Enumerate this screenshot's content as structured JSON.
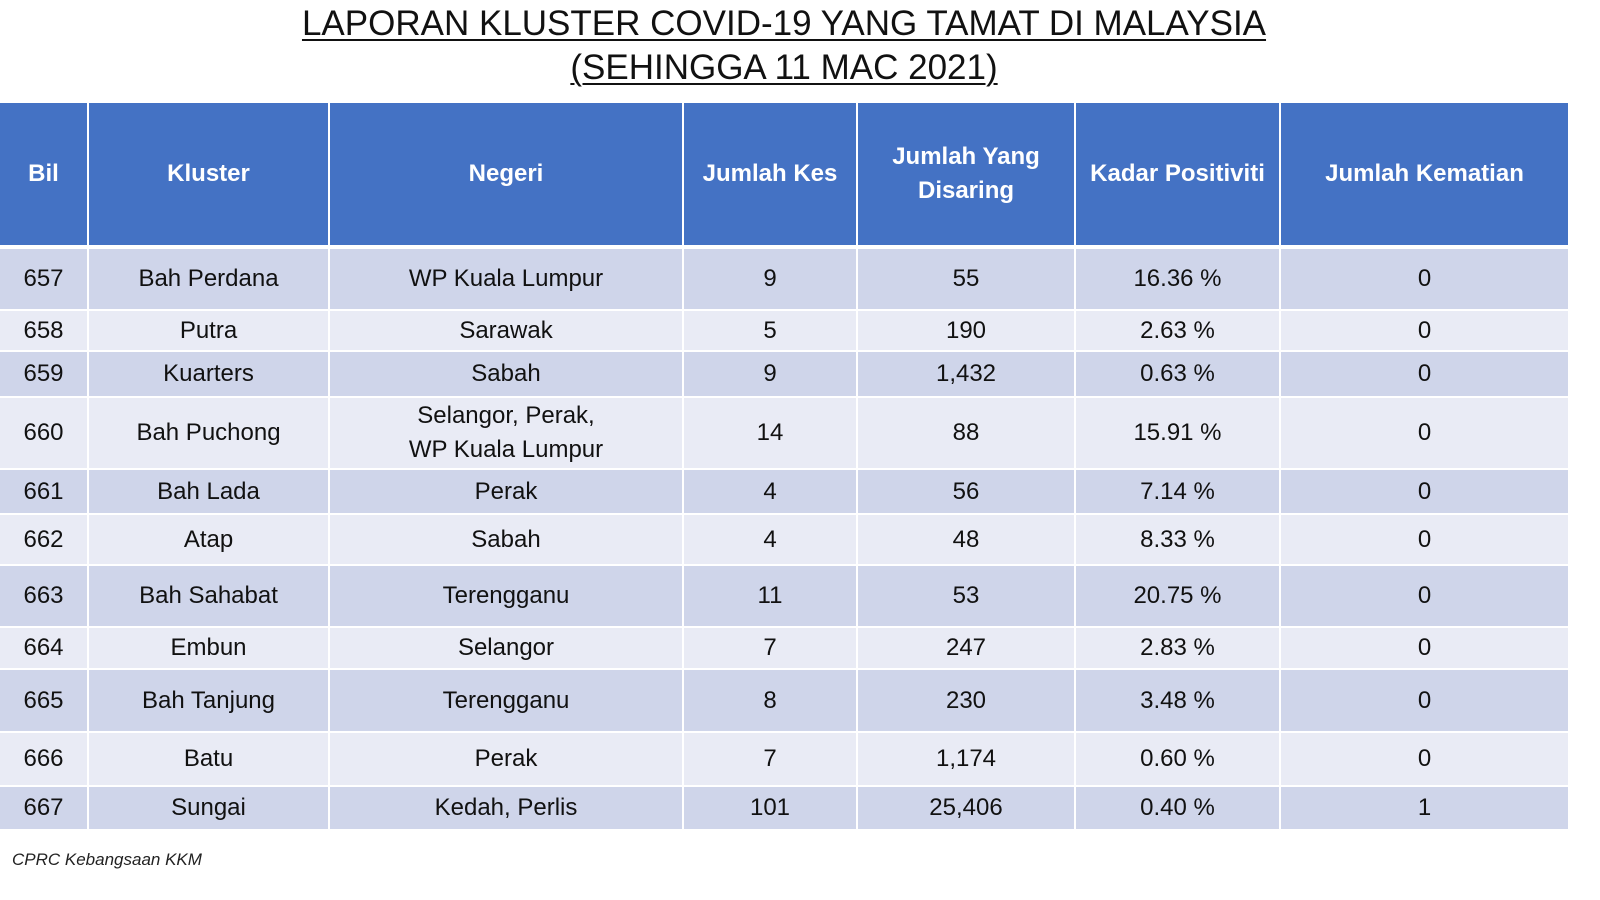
{
  "title_line1": "LAPORAN KLUSTER COVID-19 YANG TAMAT DI MALAYSIA",
  "title_line2": "(SEHINGGA 11 MAC 2021)",
  "headers": {
    "bil": "Bil",
    "kluster": "Kluster",
    "negeri": "Negeri",
    "jumlah_kes": "Jumlah Kes",
    "jumlah_disaring_1": "Jumlah Yang",
    "jumlah_disaring_2": "Disaring",
    "kadar_positiviti": "Kadar Positiviti",
    "jumlah_kematian": "Jumlah Kematian"
  },
  "rows": [
    {
      "bil": "657",
      "kluster": "Bah Perdana",
      "negeri": "WP Kuala Lumpur",
      "negeri2": "",
      "kes": "9",
      "disaring": "55",
      "positiviti": "16.36 %",
      "kematian": "0"
    },
    {
      "bil": "658",
      "kluster": "Putra",
      "negeri": "Sarawak",
      "negeri2": "",
      "kes": "5",
      "disaring": "190",
      "positiviti": "2.63 %",
      "kematian": "0"
    },
    {
      "bil": "659",
      "kluster": "Kuarters",
      "negeri": "Sabah",
      "negeri2": "",
      "kes": "9",
      "disaring": "1,432",
      "positiviti": "0.63 %",
      "kematian": "0"
    },
    {
      "bil": "660",
      "kluster": "Bah Puchong",
      "negeri": "Selangor, Perak,",
      "negeri2": "WP Kuala Lumpur",
      "kes": "14",
      "disaring": "88",
      "positiviti": "15.91 %",
      "kematian": "0"
    },
    {
      "bil": "661",
      "kluster": "Bah Lada",
      "negeri": "Perak",
      "negeri2": "",
      "kes": "4",
      "disaring": "56",
      "positiviti": "7.14 %",
      "kematian": "0"
    },
    {
      "bil": "662",
      "kluster": "Atap",
      "negeri": "Sabah",
      "negeri2": "",
      "kes": "4",
      "disaring": "48",
      "positiviti": "8.33 %",
      "kematian": "0"
    },
    {
      "bil": "663",
      "kluster": "Bah Sahabat",
      "negeri": "Terengganu",
      "negeri2": "",
      "kes": "11",
      "disaring": "53",
      "positiviti": "20.75 %",
      "kematian": "0"
    },
    {
      "bil": "664",
      "kluster": "Embun",
      "negeri": "Selangor",
      "negeri2": "",
      "kes": "7",
      "disaring": "247",
      "positiviti": "2.83 %",
      "kematian": "0"
    },
    {
      "bil": "665",
      "kluster": "Bah Tanjung",
      "negeri": "Terengganu",
      "negeri2": "",
      "kes": "8",
      "disaring": "230",
      "positiviti": "3.48 %",
      "kematian": "0"
    },
    {
      "bil": "666",
      "kluster": "Batu",
      "negeri": "Perak",
      "negeri2": "",
      "kes": "7",
      "disaring": "1,174",
      "positiviti": "0.60 %",
      "kematian": "0"
    },
    {
      "bil": "667",
      "kluster": "Sungai",
      "negeri": "Kedah, Perlis",
      "negeri2": "",
      "kes": "101",
      "disaring": "25,406",
      "positiviti": "0.40 %",
      "kematian": "1"
    }
  ],
  "footer": "CPRC Kebangsaan KKM",
  "colors": {
    "header_bg": "#4472c4",
    "row_odd": "#cfd5ea",
    "row_even": "#e9ebf5"
  }
}
